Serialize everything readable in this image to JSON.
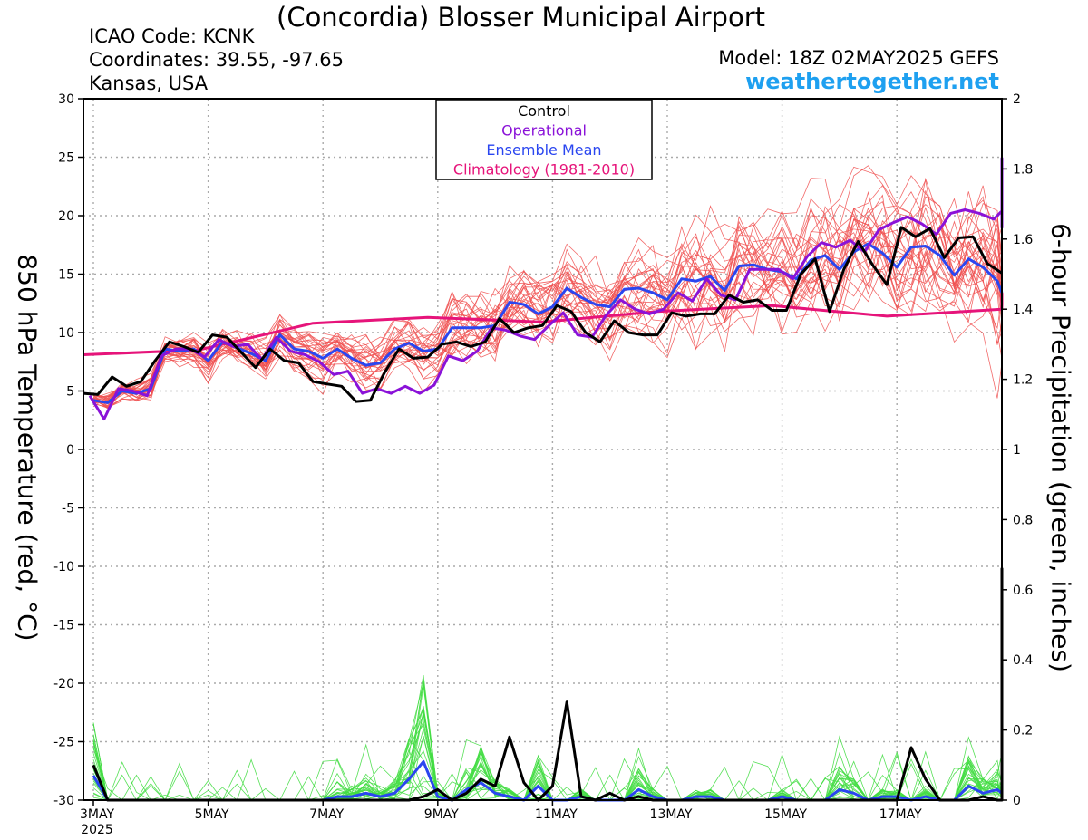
{
  "header": {
    "title": "(Concordia) Blosser Municipal Airport",
    "icao": "ICAO Code: KCNK",
    "coordinates": "Coordinates: 39.55, -97.65",
    "location": "Kansas, USA",
    "model": "Model: 18Z 02MAY2025 GEFS",
    "site": "weathertogether.net"
  },
  "colors": {
    "members_temp": "#f05050",
    "members_precip": "#44dd44",
    "control": "#000000",
    "operational": "#8a12d8",
    "ensemble_mean": "#2a46f0",
    "climatology": "#e6147a",
    "site": "#1ea0f0"
  },
  "chart_data": {
    "type": "line",
    "ylabel": "850 hPa Temperature (red, °C)",
    "y2label": "6-hour Precipitation (green, inches)",
    "ylim": [
      -30,
      30
    ],
    "y2lim": [
      0,
      2
    ],
    "yticks": [
      30,
      25,
      20,
      15,
      10,
      5,
      0,
      -5,
      -10,
      -15,
      -20,
      -25,
      -30
    ],
    "y2ticks": [
      "2",
      "1.8",
      "1.6",
      "1.4",
      "1.2",
      "1",
      "0.8",
      "0.6",
      "0.4",
      "0.2",
      "0"
    ],
    "x_start": "3MAY 2025 00Z",
    "x_step_hours": 6,
    "xticks": [
      {
        "label": "3MAY",
        "label2": "2025",
        "day": 0
      },
      {
        "label": "5MAY",
        "day": 2
      },
      {
        "label": "7MAY",
        "day": 4
      },
      {
        "label": "9MAY",
        "day": 6
      },
      {
        "label": "11MAY",
        "day": 8
      },
      {
        "label": "13MAY",
        "day": 10
      },
      {
        "label": "15MAY",
        "day": 12
      },
      {
        "label": "17MAY",
        "day": 14
      }
    ],
    "grid": true,
    "legend_position": "top-center",
    "legend": [
      {
        "label": "Control",
        "color": "#000000"
      },
      {
        "label": "Operational",
        "color": "#8a12d8"
      },
      {
        "label": "Ensemble Mean",
        "color": "#2a46f0"
      },
      {
        "label": "Climatology (1981-2010)",
        "color": "#e6147a"
      }
    ],
    "temp_series": {
      "control": [
        4.8,
        4.7,
        6.2,
        5.4,
        5.8,
        7.6,
        9.2,
        8.8,
        8.3,
        9.8,
        9.6,
        8.3,
        7.0,
        8.6,
        7.6,
        7.4,
        5.8,
        5.6,
        5.4,
        4.1,
        4.2,
        6.6,
        8.6,
        7.8,
        7.9,
        9.0,
        9.2,
        8.8,
        9.2,
        11.2,
        10.0,
        10.4,
        10.6,
        12.3,
        11.8,
        10.0,
        9.2,
        11.0,
        10.0,
        9.8,
        9.8,
        11.7,
        11.4,
        11.6,
        11.6,
        13.2,
        12.6,
        12.8,
        11.9,
        11.9,
        15.0,
        16.3,
        11.8,
        15.4,
        17.8,
        15.8,
        14.1,
        19.0,
        18.2,
        18.9,
        16.4,
        18.1,
        18.2,
        15.9,
        15.1
      ],
      "operational": [
        4.6,
        2.6,
        5.2,
        5.0,
        4.6,
        8.0,
        8.6,
        8.6,
        7.9,
        9.4,
        8.8,
        9.0,
        7.7,
        9.6,
        8.4,
        8.1,
        7.5,
        6.4,
        6.7,
        4.8,
        5.2,
        4.8,
        5.4,
        4.8,
        5.5,
        8.0,
        7.6,
        8.4,
        10.4,
        10.2,
        9.7,
        9.4,
        10.6,
        11.7,
        9.8,
        9.6,
        11.5,
        12.8,
        12.0,
        11.6,
        12.0,
        13.4,
        12.7,
        14.6,
        13.2,
        12.8,
        15.4,
        15.4,
        15.4,
        14.6,
        16.5,
        17.7,
        17.3,
        17.9,
        16.9,
        18.8,
        19.4,
        19.9,
        19.3,
        18.4,
        20.2,
        20.5,
        20.2,
        19.7,
        20.4,
        21.6,
        20.8,
        19.0,
        21.0,
        24.4,
        24.0,
        24.9,
        24.8
      ],
      "ensemble_mean": [
        4.2,
        4.0,
        5.0,
        4.8,
        5.2,
        8.6,
        8.4,
        8.6,
        7.6,
        9.2,
        8.7,
        8.2,
        7.6,
        9.8,
        8.6,
        8.4,
        7.8,
        8.6,
        7.8,
        7.2,
        7.4,
        8.6,
        9.1,
        8.4,
        8.6,
        10.4,
        10.4,
        10.4,
        10.6,
        12.6,
        12.4,
        11.6,
        12.2,
        13.8,
        13.0,
        12.4,
        12.2,
        13.7,
        13.8,
        13.4,
        12.8,
        14.6,
        14.4,
        14.8,
        13.6,
        15.7,
        15.8,
        15.4,
        15.2,
        14.6,
        16.2,
        16.6,
        15.4,
        16.9,
        17.6,
        16.8,
        15.6,
        17.3,
        17.4,
        16.6,
        14.9,
        16.3,
        15.6,
        14.4,
        13.4
      ],
      "climatology": {
        "x_steps": [
          0,
          8,
          16,
          24,
          32,
          40,
          48,
          56,
          64,
          72,
          76
        ],
        "values": [
          8.1,
          8.5,
          10.8,
          11.3,
          10.9,
          11.8,
          12.3,
          11.4,
          12.0,
          12.4,
          13.4
        ]
      },
      "members_count": 30,
      "members_spread_note": null
    },
    "precip_series": {
      "control": [
        0.1,
        0.0,
        0.0,
        0.0,
        0.0,
        0.0,
        0.0,
        0.0,
        0.0,
        0.0,
        0.0,
        0.0,
        0.0,
        0.0,
        0.0,
        0.0,
        0.0,
        0.0,
        0.0,
        0.0,
        0.0,
        0.0,
        0.0,
        0.01,
        0.03,
        0.0,
        0.02,
        0.06,
        0.04,
        0.18,
        0.05,
        0.0,
        0.04,
        0.28,
        0.01,
        0.0,
        0.02,
        0.0,
        0.01,
        0.0,
        0.0,
        0.0,
        0.0,
        0.0,
        0.0,
        0.0,
        0.0,
        0.0,
        0.0,
        0.0,
        0.0,
        0.0,
        0.0,
        0.0,
        0.0,
        0.0,
        0.0,
        0.15,
        0.06,
        0.0,
        0.0,
        0.0,
        0.01,
        0.0,
        0.0,
        0.0,
        0.0,
        0.0,
        0.0,
        0.01,
        0.01,
        0.0,
        0.01,
        0.66,
        0.01,
        0.04,
        0.08
      ],
      "ensemble_mean": [
        0.07,
        0.0,
        0.0,
        0.0,
        0.0,
        0.0,
        0.0,
        0.0,
        0.0,
        0.0,
        0.0,
        0.0,
        0.0,
        0.0,
        0.0,
        0.0,
        0.0,
        0.01,
        0.01,
        0.02,
        0.01,
        0.02,
        0.06,
        0.11,
        0.01,
        0.0,
        0.03,
        0.05,
        0.02,
        0.01,
        0.0,
        0.04,
        0.0,
        0.0,
        0.01,
        0.0,
        0.0,
        0.0,
        0.03,
        0.01,
        0.0,
        0.0,
        0.01,
        0.01,
        0.0,
        0.0,
        0.0,
        0.0,
        0.01,
        0.0,
        0.0,
        0.0,
        0.03,
        0.02,
        0.0,
        0.01,
        0.01,
        0.0,
        0.01,
        0.0,
        0.0,
        0.04,
        0.02,
        0.03,
        0.02,
        0.02,
        0.03,
        0.03,
        0.03,
        0.04,
        0.14,
        0.02,
        0.03
      ]
    }
  }
}
